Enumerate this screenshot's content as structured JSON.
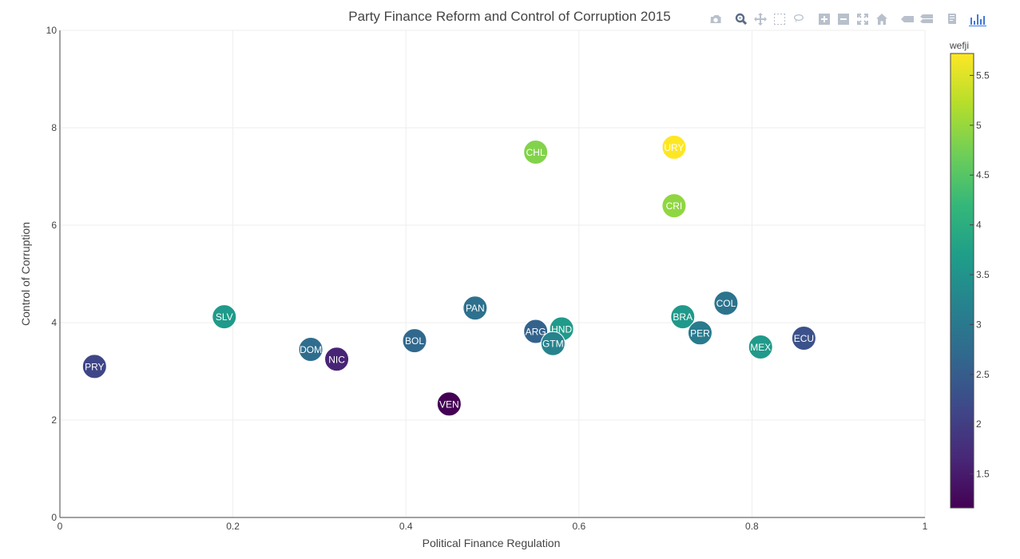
{
  "modebar": {
    "buttons": [
      {
        "name": "camera-icon",
        "group": 0
      },
      {
        "name": "zoom-icon",
        "group": 1,
        "active": true
      },
      {
        "name": "pan-icon",
        "group": 1
      },
      {
        "name": "box-select-icon",
        "group": 1
      },
      {
        "name": "lasso-select-icon",
        "group": 1
      },
      {
        "name": "zoom-in-icon",
        "group": 2
      },
      {
        "name": "zoom-out-icon",
        "group": 2
      },
      {
        "name": "autoscale-icon",
        "group": 2
      },
      {
        "name": "reset-axes-icon",
        "group": 2
      },
      {
        "name": "hover-closest-icon",
        "group": 3
      },
      {
        "name": "hover-compare-icon",
        "group": 3
      },
      {
        "name": "edit-chart-icon",
        "group": 4
      },
      {
        "name": "plotly-logo-icon",
        "group": 5
      }
    ]
  },
  "chart_data": {
    "type": "scatter",
    "title": "Party Finance Reform and Control of Corruption 2015",
    "xlabel": "Political Finance Regulation",
    "ylabel": "Control of Corruption",
    "xlim": [
      0,
      1
    ],
    "ylim": [
      0,
      10
    ],
    "x_ticks": [
      0,
      0.2,
      0.4,
      0.6,
      0.8,
      1
    ],
    "x_tick_labels": [
      "0",
      "0.2",
      "0.4",
      "0.6",
      "0.8",
      "1"
    ],
    "y_ticks": [
      0,
      2,
      4,
      6,
      8,
      10
    ],
    "y_tick_labels": [
      "0",
      "2",
      "4",
      "6",
      "8",
      "10"
    ],
    "grid": true,
    "colorbar": {
      "title": "wefji",
      "range": [
        1.16,
        5.72
      ],
      "ticks": [
        1.5,
        2,
        2.5,
        3,
        3.5,
        4,
        4.5,
        5,
        5.5
      ],
      "tick_labels": [
        "1.5",
        "2",
        "2.5",
        "3",
        "3.5",
        "4",
        "4.5",
        "5",
        "5.5"
      ],
      "colorscale": [
        "#440154",
        "#482878",
        "#3e4989",
        "#31688e",
        "#26828e",
        "#1f9e89",
        "#35b779",
        "#6ece58",
        "#b5de2b",
        "#fde725"
      ]
    },
    "points": [
      {
        "label": "PRY",
        "x": 0.04,
        "y": 3.1,
        "c": 2.12
      },
      {
        "label": "SLV",
        "x": 0.19,
        "y": 4.12,
        "c": 3.62
      },
      {
        "label": "DOM",
        "x": 0.29,
        "y": 3.45,
        "c": 2.78
      },
      {
        "label": "NIC",
        "x": 0.32,
        "y": 3.25,
        "c": 1.62
      },
      {
        "label": "BOL",
        "x": 0.41,
        "y": 3.63,
        "c": 2.7
      },
      {
        "label": "VEN",
        "x": 0.45,
        "y": 2.33,
        "c": 1.16
      },
      {
        "label": "PAN",
        "x": 0.48,
        "y": 4.3,
        "c": 2.85
      },
      {
        "label": "CHL",
        "x": 0.55,
        "y": 7.5,
        "c": 4.85
      },
      {
        "label": "ARG",
        "x": 0.55,
        "y": 3.82,
        "c": 2.6
      },
      {
        "label": "HND",
        "x": 0.58,
        "y": 3.87,
        "c": 3.62
      },
      {
        "label": "GTM",
        "x": 0.57,
        "y": 3.57,
        "c": 3.2
      },
      {
        "label": "URY",
        "x": 0.71,
        "y": 7.6,
        "c": 5.72
      },
      {
        "label": "CRI",
        "x": 0.71,
        "y": 6.4,
        "c": 4.95
      },
      {
        "label": "COL",
        "x": 0.77,
        "y": 4.4,
        "c": 2.9
      },
      {
        "label": "BRA",
        "x": 0.72,
        "y": 4.12,
        "c": 3.6
      },
      {
        "label": "PER",
        "x": 0.74,
        "y": 3.79,
        "c": 3.05
      },
      {
        "label": "MEX",
        "x": 0.81,
        "y": 3.5,
        "c": 3.62
      },
      {
        "label": "ECU",
        "x": 0.86,
        "y": 3.68,
        "c": 2.3
      }
    ]
  }
}
